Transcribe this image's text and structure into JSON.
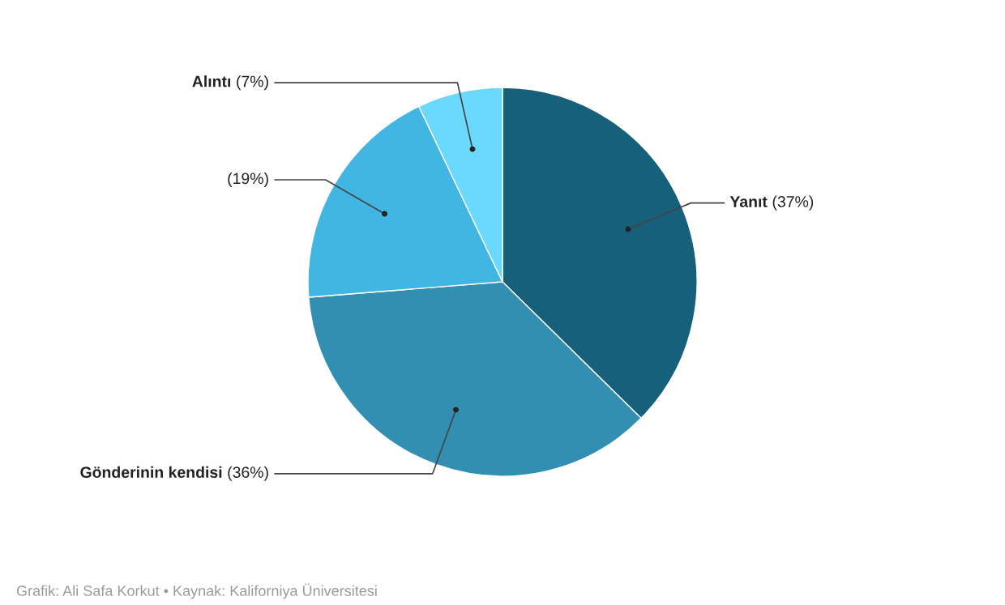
{
  "chart_data": {
    "type": "pie",
    "categories": [
      "Yanıt",
      "Gönderinin kendisi",
      null,
      "Alıntı"
    ],
    "values": [
      37,
      36,
      19,
      7
    ],
    "value_labels": [
      "(37%)",
      "(36%)",
      "(19%)",
      "(7%)"
    ],
    "colors": [
      "#17607c",
      "#338fb1",
      "#42b6e2",
      "#6ad9fd"
    ],
    "legend": false,
    "annotations": [
      "Grafik: Ali Safa Korkut • Kaynak: Kaliforniya Üniversitesi"
    ]
  }
}
